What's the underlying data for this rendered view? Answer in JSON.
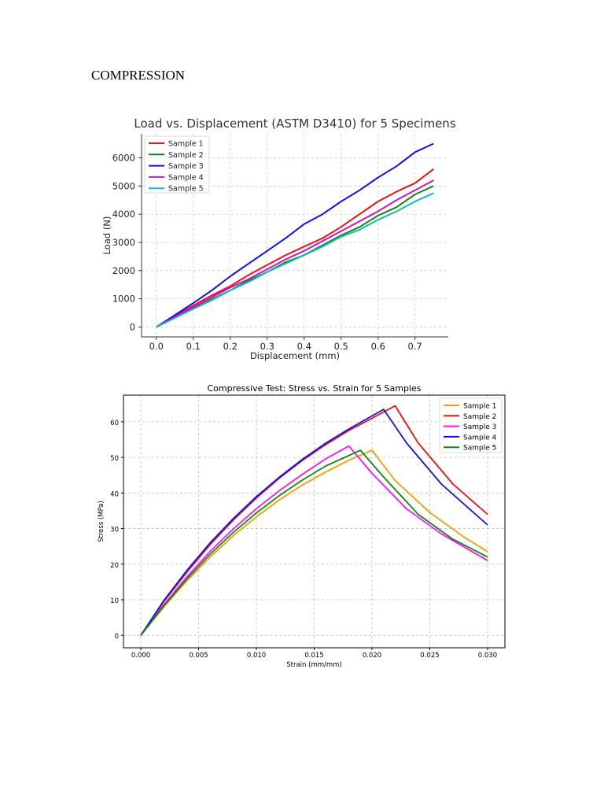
{
  "page": {
    "heading": "COMPRESSION"
  },
  "chart_data": [
    {
      "type": "line",
      "title": "Load vs. Displacement (ASTM D3410) for 5 Specimens",
      "xlabel": "Displacement (mm)",
      "ylabel": "Load (N)",
      "xlim": [
        -0.04,
        0.79
      ],
      "ylim": [
        -350,
        6850
      ],
      "xticks": [
        0.0,
        0.1,
        0.2,
        0.3,
        0.4,
        0.5,
        0.6,
        0.7
      ],
      "xtick_labels": [
        "0.0",
        "0.1",
        "0.2",
        "0.3",
        "0.4",
        "0.5",
        "0.6",
        "0.7"
      ],
      "yticks": [
        0,
        1000,
        2000,
        3000,
        4000,
        5000,
        6000
      ],
      "ytick_labels": [
        "0",
        "1000",
        "2000",
        "3000",
        "4000",
        "5000",
        "6000"
      ],
      "grid": true,
      "legend": "top-left",
      "series": [
        {
          "name": "Sample 1",
          "color": "#ee1111",
          "x": [
            0,
            0.05,
            0.1,
            0.15,
            0.2,
            0.25,
            0.3,
            0.35,
            0.4,
            0.45,
            0.5,
            0.55,
            0.6,
            0.65,
            0.7,
            0.75
          ],
          "y": [
            0,
            380,
            760,
            1120,
            1450,
            1850,
            2200,
            2550,
            2850,
            3150,
            3550,
            4000,
            4450,
            4800,
            5100,
            5600
          ]
        },
        {
          "name": "Sample 2",
          "color": "#118811",
          "x": [
            0,
            0.05,
            0.1,
            0.15,
            0.2,
            0.25,
            0.3,
            0.35,
            0.4,
            0.45,
            0.5,
            0.55,
            0.6,
            0.65,
            0.7,
            0.75
          ],
          "y": [
            0,
            330,
            650,
            980,
            1300,
            1650,
            1950,
            2300,
            2550,
            2900,
            3250,
            3550,
            3950,
            4250,
            4700,
            5000
          ]
        },
        {
          "name": "Sample 3",
          "color": "#1111ee",
          "x": [
            0,
            0.05,
            0.1,
            0.15,
            0.2,
            0.25,
            0.3,
            0.35,
            0.4,
            0.45,
            0.5,
            0.55,
            0.6,
            0.65,
            0.7,
            0.75
          ],
          "y": [
            0,
            420,
            850,
            1300,
            1800,
            2250,
            2700,
            3150,
            3650,
            4000,
            4450,
            4850,
            5300,
            5700,
            6200,
            6500
          ]
        },
        {
          "name": "Sample 4",
          "color": "#cc11cc",
          "x": [
            0,
            0.05,
            0.1,
            0.15,
            0.2,
            0.25,
            0.3,
            0.35,
            0.4,
            0.45,
            0.5,
            0.55,
            0.6,
            0.65,
            0.7,
            0.75
          ],
          "y": [
            0,
            350,
            700,
            1050,
            1400,
            1700,
            2050,
            2400,
            2700,
            3050,
            3400,
            3750,
            4100,
            4500,
            4850,
            5200
          ]
        },
        {
          "name": "Sample 5",
          "color": "#11bbbb",
          "x": [
            0,
            0.05,
            0.1,
            0.15,
            0.2,
            0.25,
            0.3,
            0.35,
            0.4,
            0.45,
            0.5,
            0.55,
            0.6,
            0.65,
            0.7,
            0.75
          ],
          "y": [
            0,
            320,
            640,
            950,
            1300,
            1600,
            1950,
            2250,
            2550,
            2850,
            3200,
            3450,
            3800,
            4100,
            4450,
            4750
          ]
        }
      ]
    },
    {
      "type": "line",
      "title": "Compressive Test: Stress vs. Strain for 5 Samples",
      "xlabel": "Strain (mm/mm)",
      "ylabel": "Stress (MPa)",
      "xlim": [
        -0.0015,
        0.0315
      ],
      "ylim": [
        -3.5,
        67.5
      ],
      "xticks": [
        0.0,
        0.005,
        0.01,
        0.015,
        0.02,
        0.025,
        0.03
      ],
      "xtick_labels": [
        "0.000",
        "0.005",
        "0.010",
        "0.015",
        "0.020",
        "0.025",
        "0.030"
      ],
      "yticks": [
        0,
        10,
        20,
        30,
        40,
        50,
        60
      ],
      "ytick_labels": [
        "0",
        "10",
        "20",
        "30",
        "40",
        "50",
        "60"
      ],
      "grid": true,
      "legend": "top-right",
      "series": [
        {
          "name": "Sample 1",
          "color": "#ff9900",
          "x": [
            0,
            0.002,
            0.004,
            0.006,
            0.008,
            0.01,
            0.012,
            0.014,
            0.016,
            0.018,
            0.02,
            0.022,
            0.025,
            0.028,
            0.03
          ],
          "y": [
            0,
            8,
            15.4,
            22,
            28,
            33.3,
            38.1,
            42.3,
            45.9,
            49.2,
            52,
            43.5,
            34.5,
            27.5,
            23.5
          ]
        },
        {
          "name": "Sample 2",
          "color": "#ee1111",
          "x": [
            0,
            0.002,
            0.004,
            0.006,
            0.008,
            0.01,
            0.012,
            0.014,
            0.016,
            0.018,
            0.02,
            0.022,
            0.024,
            0.027,
            0.03
          ],
          "y": [
            0,
            9.5,
            17.8,
            25.5,
            32.4,
            38.6,
            44.2,
            49.2,
            53.6,
            57.6,
            61,
            64.5,
            54,
            42.5,
            34
          ]
        },
        {
          "name": "Sample 3",
          "color": "#ff11ff",
          "x": [
            0,
            0.002,
            0.004,
            0.006,
            0.008,
            0.01,
            0.012,
            0.014,
            0.016,
            0.018,
            0.02,
            0.023,
            0.026,
            0.03
          ],
          "y": [
            0,
            8.6,
            16.5,
            23.6,
            29.9,
            35.6,
            40.7,
            45.3,
            49.6,
            53.2,
            45.5,
            35.5,
            28.5,
            21
          ]
        },
        {
          "name": "Sample 4",
          "color": "#1111ee",
          "x": [
            0,
            0.002,
            0.004,
            0.006,
            0.008,
            0.01,
            0.012,
            0.014,
            0.016,
            0.018,
            0.021,
            0.023,
            0.026,
            0.03
          ],
          "y": [
            0,
            9.8,
            18.3,
            26,
            32.8,
            39,
            44.5,
            49.5,
            54,
            58,
            63.5,
            54,
            42.5,
            31
          ]
        },
        {
          "name": "Sample 5",
          "color": "#118811",
          "x": [
            0,
            0.002,
            0.004,
            0.006,
            0.008,
            0.01,
            0.012,
            0.014,
            0.016,
            0.019,
            0.021,
            0.024,
            0.027,
            0.03
          ],
          "y": [
            0,
            8.3,
            15.9,
            22.8,
            28.9,
            34.4,
            39.3,
            43.7,
            47.6,
            52,
            44.5,
            34,
            27,
            22
          ]
        }
      ]
    }
  ]
}
